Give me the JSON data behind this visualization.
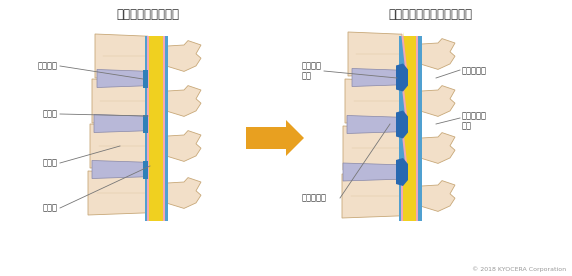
{
  "title_left": "正常な脊椎の断面図",
  "title_right": "腰部脊柱管狭窄症の断面図",
  "copyright": "© 2018 KYOCERA Corporation",
  "bg_color": "#ffffff",
  "bone_color": "#f2dfc8",
  "bone_edge_color": "#c8a878",
  "bone_texture_color": "#e8c8a8",
  "disc_color": "#b8b8d8",
  "disc_edge_color": "#8888a8",
  "canal_yellow": "#f0d020",
  "canal_pink": "#f0a8b8",
  "canal_blue": "#50a0d0",
  "canal_blue_dark": "#3080b8",
  "stenosis_blue": "#2868b0",
  "arrow_color": "#e8a020",
  "text_color": "#333333",
  "line_color": "#777777"
}
